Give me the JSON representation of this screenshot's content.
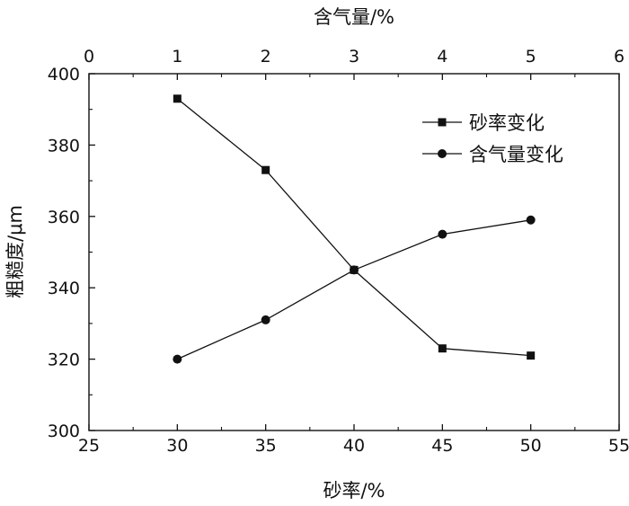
{
  "chart_data": {
    "type": "line",
    "x_bottom": {
      "label": "砂率/%",
      "range": [
        25,
        55
      ],
      "ticks": [
        25,
        30,
        35,
        40,
        45,
        50,
        55
      ]
    },
    "x_top": {
      "label": "含气量/%",
      "range": [
        0,
        6
      ],
      "ticks": [
        0,
        1,
        2,
        3,
        4,
        5,
        6
      ]
    },
    "y": {
      "label": "粗糙度/μm",
      "range": [
        300,
        400
      ],
      "ticks": [
        300,
        320,
        340,
        360,
        380,
        400
      ]
    },
    "grid": false,
    "legend_position": "top-right",
    "series": [
      {
        "name": "砂率变化",
        "x_axis": "bottom",
        "marker": "square",
        "color": "#111111",
        "x": [
          30,
          35,
          40,
          45,
          50
        ],
        "y": [
          393,
          373,
          345,
          323,
          321
        ]
      },
      {
        "name": "含气量变化",
        "x_axis": "top",
        "marker": "circle",
        "color": "#111111",
        "x": [
          1,
          2,
          3,
          4,
          5
        ],
        "y": [
          320,
          331,
          345,
          355,
          359
        ]
      }
    ]
  }
}
